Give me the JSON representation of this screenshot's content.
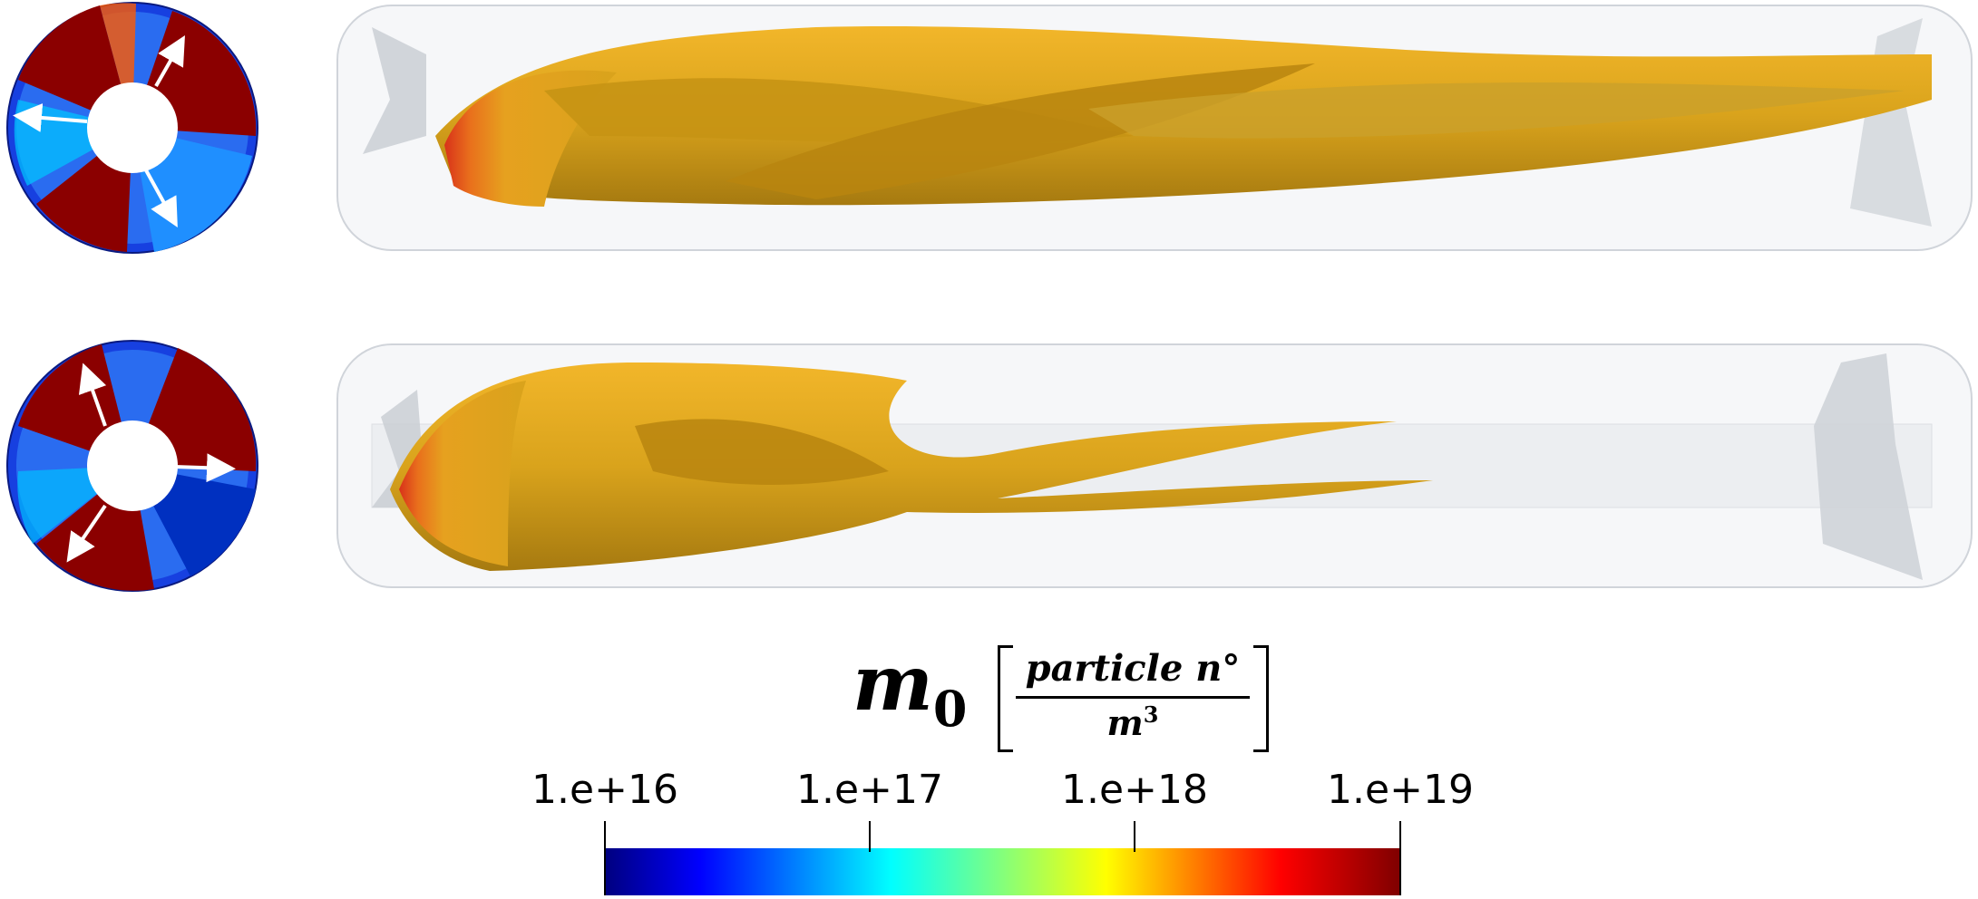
{
  "colorbar": {
    "symbol": "m",
    "subscript": "0",
    "unit_numerator": "particle n°",
    "unit_denominator": "m",
    "unit_denominator_exp": "3",
    "scale": "log",
    "ticks": [
      "1.e+16",
      "1.e+17",
      "1.e+18",
      "1.e+19"
    ],
    "colormap": [
      "#00007f",
      "#0000ff",
      "#00ffff",
      "#ffff00",
      "#ff0000",
      "#7f0000"
    ]
  },
  "panels": [
    {
      "name": "top",
      "arrows": 3
    },
    {
      "name": "bottom",
      "arrows": 3
    }
  ]
}
